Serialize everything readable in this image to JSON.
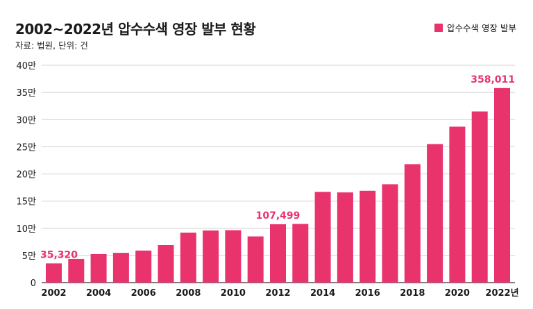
{
  "header": {
    "title": "2002~2022년 압수수색 영장 발부 현황",
    "source": "자료: 법원, 단위: 건"
  },
  "legend": {
    "label": "압수수색 영장 발부"
  },
  "colors": {
    "bar": "#e8336d",
    "annotation": "#e8336d",
    "grid": "#d0d0d0",
    "axis": "#333333",
    "text": "#1a1a1a"
  },
  "chart_data": {
    "type": "bar",
    "title": "2002~2022년 압수수색 영장 발부 현황",
    "subtitle": "자료: 법원, 단위: 건",
    "categories": [
      "2002",
      "2003",
      "2004",
      "2005",
      "2006",
      "2007",
      "2008",
      "2009",
      "2010",
      "2011",
      "2012",
      "2013",
      "2014",
      "2015",
      "2016",
      "2017",
      "2018",
      "2019",
      "2020",
      "2021",
      "2022"
    ],
    "series": [
      {
        "name": "압수수색 영장 발부",
        "values": [
          35320,
          43500,
          52500,
          54800,
          59000,
          69000,
          92000,
          96000,
          96500,
          85000,
          107499,
          108000,
          167000,
          166000,
          169000,
          181000,
          218000,
          255000,
          287000,
          315000,
          358011
        ]
      }
    ],
    "x_tick_labels": [
      "2002",
      "2004",
      "2006",
      "2008",
      "2010",
      "2012",
      "2014",
      "2016",
      "2018",
      "2020",
      "2022년"
    ],
    "y_ticks": [
      0,
      50000,
      100000,
      150000,
      200000,
      250000,
      300000,
      350000,
      400000
    ],
    "y_tick_labels": [
      "0",
      "5만",
      "10만",
      "15만",
      "20만",
      "25만",
      "30만",
      "35만",
      "40만"
    ],
    "ylim": [
      0,
      400000
    ],
    "annotations": [
      {
        "category": "2002",
        "text": "35,320"
      },
      {
        "category": "2012",
        "text": "107,499"
      },
      {
        "category": "2022",
        "text": "358,011"
      }
    ],
    "grid": true,
    "legend_position": "top-right"
  }
}
